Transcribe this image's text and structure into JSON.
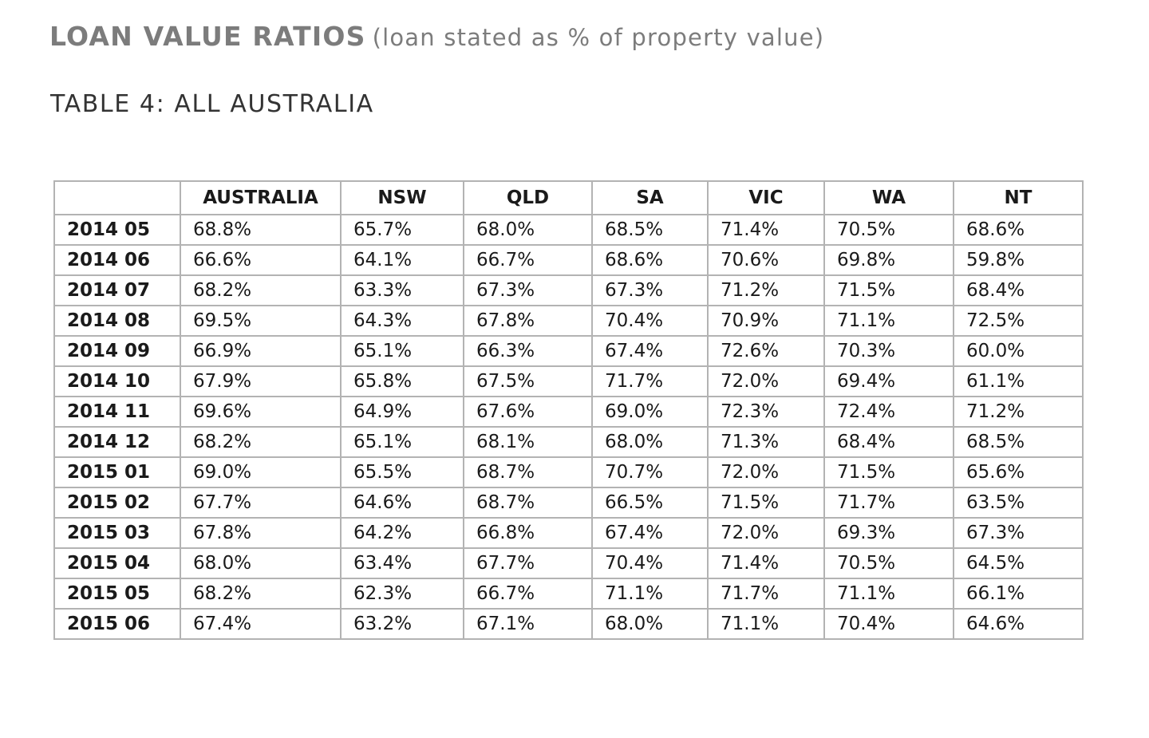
{
  "heading": {
    "main": "LOAN VALUE RATIOS",
    "sub": "(loan stated as % of property value)"
  },
  "subheading": "TABLE 4: ALL AUSTRALIA",
  "table": {
    "corner": "",
    "columns": [
      "AUSTRALIA",
      "NSW",
      "QLD",
      "SA",
      "VIC",
      "WA",
      "NT"
    ],
    "rows": [
      {
        "period": "2014 05",
        "values": [
          "68.8%",
          "65.7%",
          "68.0%",
          "68.5%",
          "71.4%",
          "70.5%",
          "68.6%"
        ]
      },
      {
        "period": "2014 06",
        "values": [
          "66.6%",
          "64.1%",
          "66.7%",
          "68.6%",
          "70.6%",
          "69.8%",
          "59.8%"
        ]
      },
      {
        "period": "2014 07",
        "values": [
          "68.2%",
          "63.3%",
          "67.3%",
          "67.3%",
          "71.2%",
          "71.5%",
          "68.4%"
        ]
      },
      {
        "period": "2014 08",
        "values": [
          "69.5%",
          "64.3%",
          "67.8%",
          "70.4%",
          "70.9%",
          "71.1%",
          "72.5%"
        ]
      },
      {
        "period": "2014 09",
        "values": [
          "66.9%",
          "65.1%",
          "66.3%",
          "67.4%",
          "72.6%",
          "70.3%",
          "60.0%"
        ]
      },
      {
        "period": "2014 10",
        "values": [
          "67.9%",
          "65.8%",
          "67.5%",
          "71.7%",
          "72.0%",
          "69.4%",
          "61.1%"
        ]
      },
      {
        "period": "2014 11",
        "values": [
          "69.6%",
          "64.9%",
          "67.6%",
          "69.0%",
          "72.3%",
          "72.4%",
          "71.2%"
        ]
      },
      {
        "period": "2014 12",
        "values": [
          "68.2%",
          "65.1%",
          "68.1%",
          "68.0%",
          "71.3%",
          "68.4%",
          "68.5%"
        ]
      },
      {
        "period": "2015 01",
        "values": [
          "69.0%",
          "65.5%",
          "68.7%",
          "70.7%",
          "72.0%",
          "71.5%",
          "65.6%"
        ]
      },
      {
        "period": "2015 02",
        "values": [
          "67.7%",
          "64.6%",
          "68.7%",
          "66.5%",
          "71.5%",
          "71.7%",
          "63.5%"
        ]
      },
      {
        "period": "2015 03",
        "values": [
          "67.8%",
          "64.2%",
          "66.8%",
          "67.4%",
          "72.0%",
          "69.3%",
          "67.3%"
        ]
      },
      {
        "period": "2015 04",
        "values": [
          "68.0%",
          "63.4%",
          "67.7%",
          "70.4%",
          "71.4%",
          "70.5%",
          "64.5%"
        ]
      },
      {
        "period": "2015 05",
        "values": [
          "68.2%",
          "62.3%",
          "66.7%",
          "71.1%",
          "71.7%",
          "71.1%",
          "66.1%"
        ]
      },
      {
        "period": "2015 06",
        "values": [
          "67.4%",
          "63.2%",
          "67.1%",
          "68.0%",
          "71.1%",
          "70.4%",
          "64.6%"
        ]
      }
    ]
  }
}
